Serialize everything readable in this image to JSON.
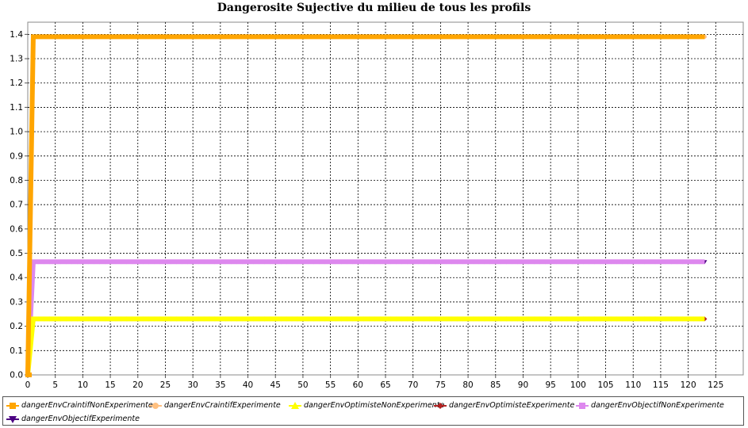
{
  "chart_data": {
    "type": "line",
    "title": "Dangerosite Sujective du milieu de tous les profils",
    "xlabel": "",
    "ylabel": "",
    "xlim": [
      0,
      130
    ],
    "ylim": [
      0.0,
      1.45
    ],
    "x_ticks": [
      0,
      5,
      10,
      15,
      20,
      25,
      30,
      35,
      40,
      45,
      50,
      55,
      60,
      65,
      70,
      75,
      80,
      85,
      90,
      95,
      100,
      105,
      110,
      115,
      120,
      125
    ],
    "x_tick_labels": [
      "0",
      "5",
      "10",
      "15",
      "20",
      "25",
      "30",
      "35",
      "40",
      "45",
      "50",
      "55",
      "60",
      "65",
      "70",
      "75",
      "80",
      "85",
      "90",
      "95",
      "100",
      "105",
      "110",
      "115",
      "120",
      "125"
    ],
    "y_ticks": [
      0.0,
      0.1,
      0.2,
      0.3,
      0.4,
      0.5,
      0.6,
      0.7,
      0.8,
      0.9,
      1.0,
      1.1,
      1.2,
      1.3,
      1.4
    ],
    "y_tick_labels": [
      "0.0",
      "0.1",
      "0.2",
      "0.3",
      "0.4",
      "0.5",
      "0.6",
      "0.7",
      "0.8",
      "0.9",
      "1.0",
      "1.1",
      "1.2",
      "1.3",
      "1.4"
    ],
    "grid": true,
    "legend_position": "bottom",
    "series": [
      {
        "name": "dangerEnvCraintifNonExperimente",
        "color": "#ffa500",
        "marker": "square",
        "start": [
          0,
          0.0
        ],
        "step_x": 1,
        "value": 1.39,
        "end_x": 123
      },
      {
        "name": "dangerEnvCraintifExperimente",
        "color": "#ffc080",
        "marker": "circle",
        "start": [
          0,
          0.0
        ],
        "step_x": 1,
        "value": 1.39,
        "end_x": 123
      },
      {
        "name": "dangerEnvOptimisteNonExperimente",
        "color": "#ffff00",
        "marker": "triangle-up",
        "start": [
          0,
          0.0
        ],
        "step_x": 1,
        "value": 0.23,
        "end_x": 123
      },
      {
        "name": "dangerEnvOptimisteExperimente",
        "color": "#b22222",
        "marker": "diamond",
        "start": [
          0,
          0.0
        ],
        "step_x": 1,
        "value": 0.23,
        "end_x": 123
      },
      {
        "name": "dangerEnvObjectifNonExperimente",
        "color": "#dd88ee",
        "marker": "square",
        "start": [
          0,
          0.0
        ],
        "step_x": 1,
        "value": 0.465,
        "end_x": 123
      },
      {
        "name": "dangerEnvObjectifExperimente",
        "color": "#4b0082",
        "marker": "triangle-down",
        "start": [
          0,
          0.0
        ],
        "step_x": 1,
        "value": 0.465,
        "end_x": 123
      }
    ]
  }
}
